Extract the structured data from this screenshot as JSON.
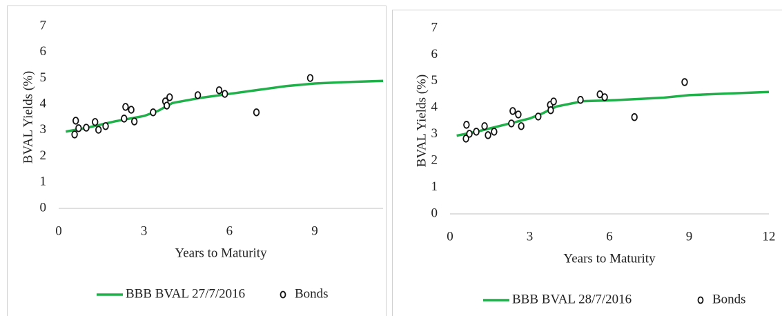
{
  "chart_data": [
    {
      "type": "line",
      "ylabel": "BVAL Yields (%)",
      "xlabel": "Years to Maturity",
      "xlim": [
        0,
        11.4
      ],
      "xticks": [
        0,
        3,
        6,
        9
      ],
      "ylim": [
        0,
        7
      ],
      "yticks": [
        0,
        1,
        2,
        3,
        4,
        5,
        6,
        7
      ],
      "series": [
        {
          "name": "BBB BVAL 27/7/2016",
          "type": "line",
          "color": "#1fb04a",
          "x": [
            0.25,
            1,
            2,
            3,
            3.5,
            4,
            5,
            6,
            7,
            8,
            9,
            10,
            11.4
          ],
          "values": [
            2.95,
            3.1,
            3.35,
            3.55,
            3.75,
            4.05,
            4.25,
            4.4,
            4.55,
            4.7,
            4.8,
            4.85,
            4.9
          ]
        },
        {
          "name": "Bonds",
          "type": "scatter",
          "color": "#111111",
          "x": [
            0.6,
            0.7,
            0.97,
            0.56,
            1.28,
            1.4,
            1.65,
            2.35,
            2.55,
            2.3,
            2.66,
            3.32,
            3.75,
            3.8,
            3.9,
            4.89,
            5.64,
            5.84,
            6.95,
            8.84
          ],
          "values": [
            3.37,
            3.08,
            3.1,
            2.84,
            3.32,
            3.02,
            3.16,
            3.9,
            3.79,
            3.45,
            3.34,
            3.69,
            4.11,
            3.95,
            4.27,
            4.35,
            4.54,
            4.4,
            3.69,
            5.01
          ]
        }
      ]
    },
    {
      "type": "line",
      "ylabel": "BVAL Yields (%)",
      "xlabel": "Years to Maturity",
      "xlim": [
        0,
        12
      ],
      "xticks": [
        0,
        3,
        6,
        9,
        12
      ],
      "ylim": [
        0,
        7
      ],
      "yticks": [
        0,
        1,
        2,
        3,
        4,
        5,
        6,
        7
      ],
      "series": [
        {
          "name": "BBB BVAL 28/7/2016",
          "type": "line",
          "color": "#1fb04a",
          "x": [
            0.25,
            1,
            2,
            3,
            3.5,
            4,
            5,
            6,
            7,
            8,
            9,
            10,
            12
          ],
          "values": [
            2.95,
            3.1,
            3.35,
            3.6,
            3.8,
            4.05,
            4.25,
            4.28,
            4.33,
            4.38,
            4.48,
            4.52,
            4.6
          ]
        },
        {
          "name": "Bonds",
          "type": "scatter",
          "color": "#111111",
          "x": [
            0.62,
            0.73,
            0.99,
            0.6,
            1.3,
            1.43,
            1.66,
            2.36,
            2.57,
            2.31,
            2.68,
            3.32,
            3.77,
            3.79,
            3.9,
            4.91,
            5.64,
            5.82,
            6.94,
            8.83
          ],
          "values": [
            3.36,
            3.02,
            3.1,
            2.84,
            3.31,
            2.97,
            3.1,
            3.88,
            3.75,
            3.41,
            3.31,
            3.67,
            4.11,
            3.91,
            4.24,
            4.3,
            4.51,
            4.4,
            3.65,
            4.97
          ]
        }
      ]
    }
  ]
}
